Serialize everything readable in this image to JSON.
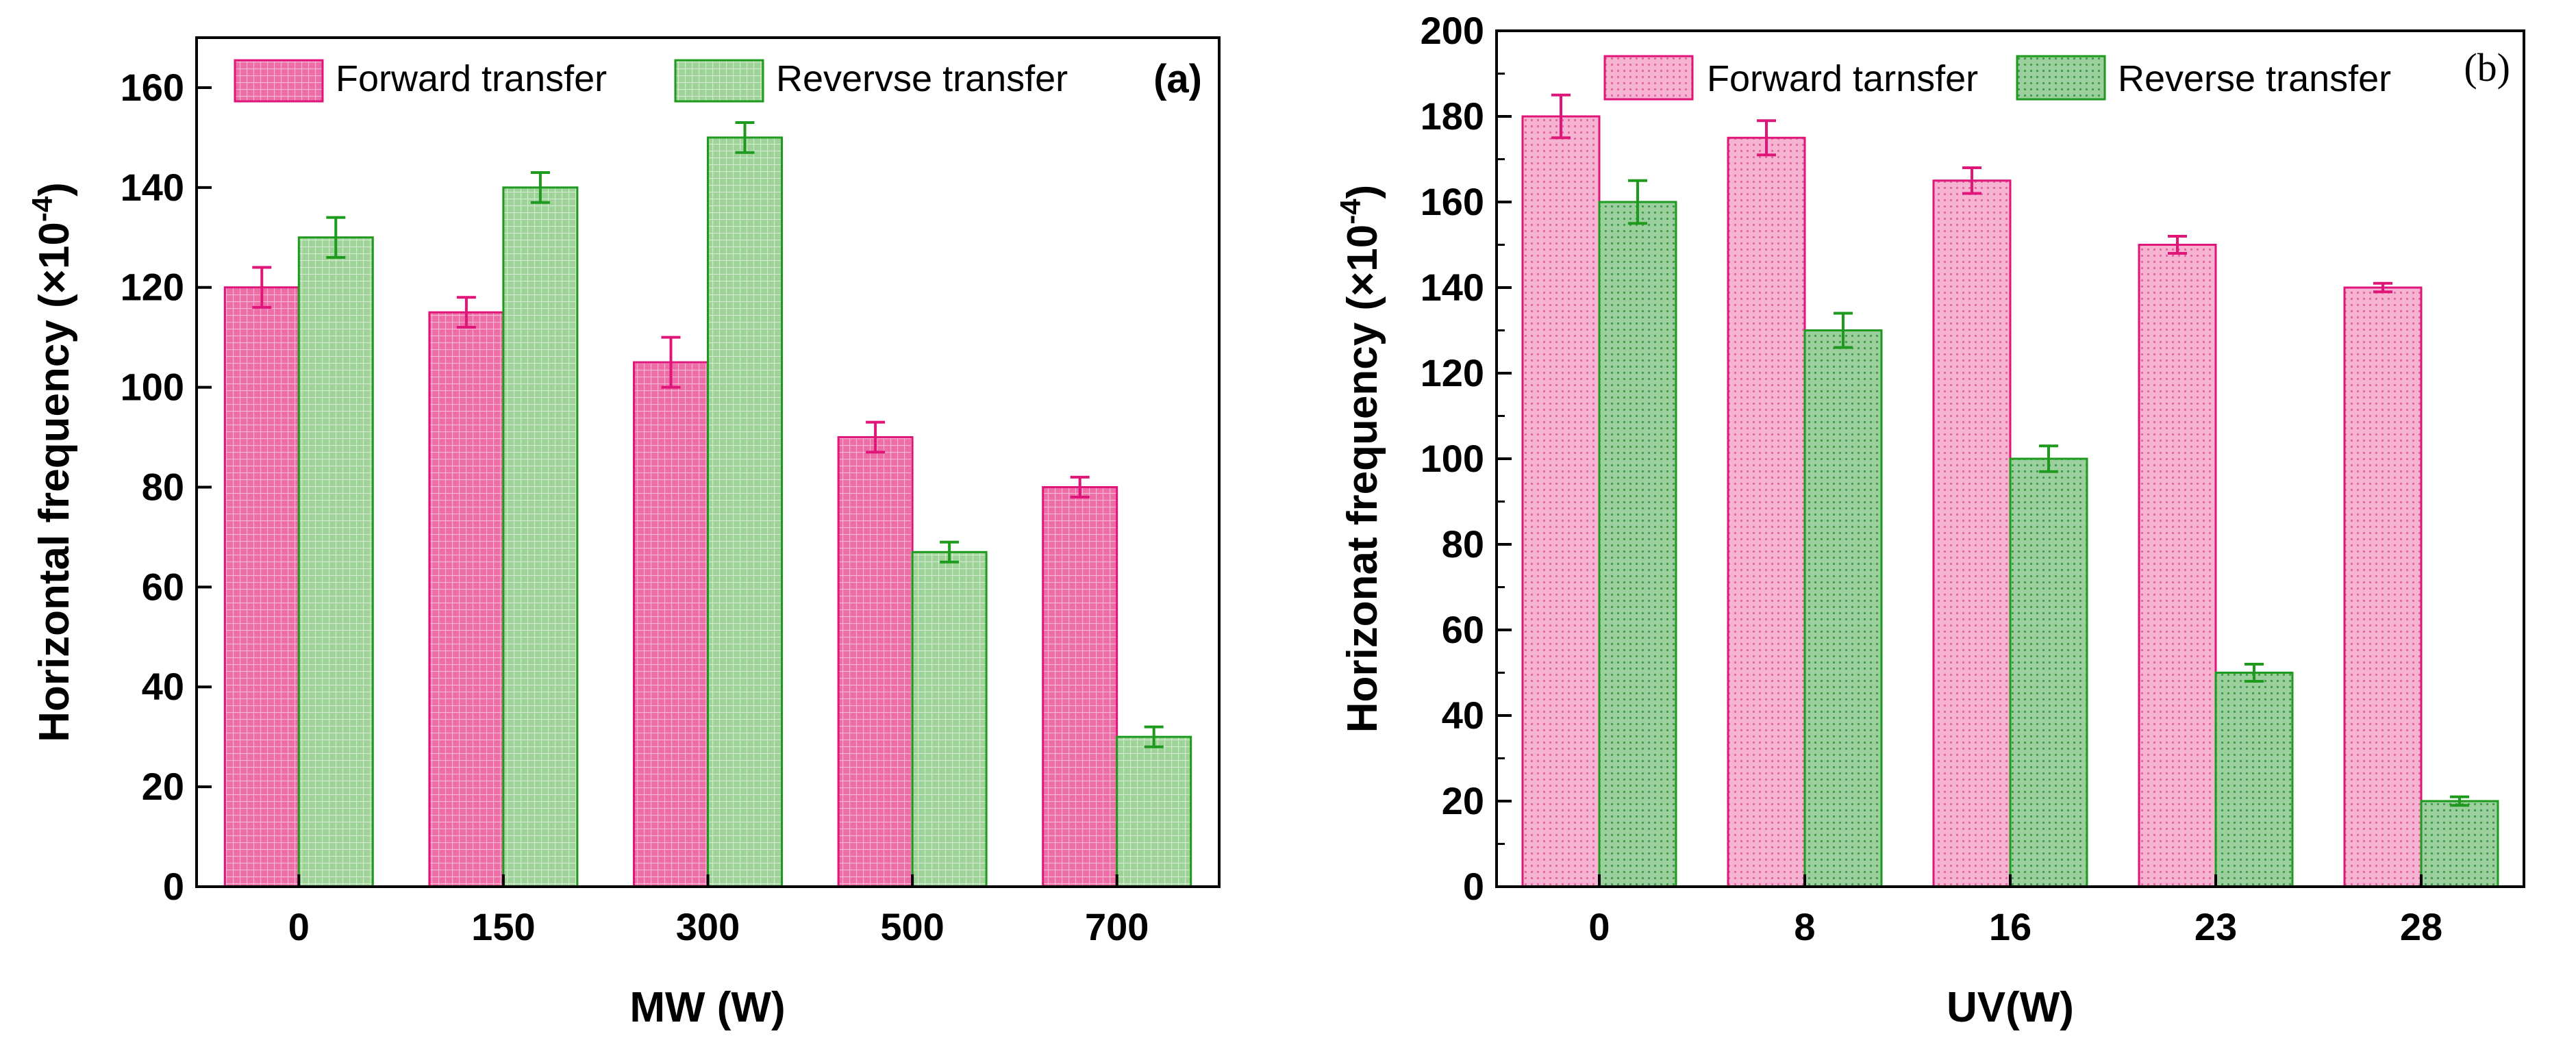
{
  "chart_data": [
    {
      "type": "bar",
      "panel_label": "(a)",
      "title": "",
      "xlabel": "MW (W)",
      "ylabel_main": "Horizontal frequency (×10",
      "ylabel_exp": "-4",
      "ylabel_close": ")",
      "categories": [
        "0",
        "150",
        "300",
        "500",
        "700"
      ],
      "series": [
        {
          "name": "Forward transfer",
          "values": [
            120,
            115,
            105,
            90,
            80
          ],
          "errors": [
            4,
            3,
            5,
            3,
            2
          ],
          "color": "#ee6fa8",
          "edge": "#e0157a",
          "pattern": "grid"
        },
        {
          "name": "Revervse transfer",
          "values": [
            130,
            140,
            150,
            67,
            30
          ],
          "errors": [
            4,
            3,
            3,
            2,
            2
          ],
          "color": "#9fd39a",
          "edge": "#1e9a1e",
          "pattern": "grid"
        }
      ],
      "ylim": [
        0,
        170
      ],
      "yticks": [
        0,
        20,
        40,
        60,
        80,
        100,
        120,
        140,
        160
      ],
      "legend_position": "top",
      "grid": false
    },
    {
      "type": "bar",
      "panel_label": "(b)",
      "title": "",
      "xlabel": "UV(W)",
      "ylabel_main": "Horizonat frequency (×10",
      "ylabel_exp": "-4",
      "ylabel_close": ")",
      "categories": [
        "0",
        "8",
        "16",
        "23",
        "28"
      ],
      "series": [
        {
          "name": "Forward tarnsfer",
          "values": [
            180,
            175,
            165,
            150,
            140
          ],
          "errors": [
            5,
            4,
            3,
            2,
            1
          ],
          "color": "#f7b4d2",
          "edge": "#e0157a",
          "pattern": "dots"
        },
        {
          "name": "Reverse transfer",
          "values": [
            160,
            130,
            100,
            50,
            20
          ],
          "errors": [
            5,
            4,
            3,
            2,
            1
          ],
          "color": "#9ccf9e",
          "edge": "#1e9a1e",
          "pattern": "dots"
        }
      ],
      "ylim": [
        0,
        200
      ],
      "yticks": [
        0,
        20,
        40,
        60,
        80,
        100,
        120,
        140,
        160,
        180,
        200
      ],
      "legend_position": "top",
      "grid": false
    }
  ]
}
